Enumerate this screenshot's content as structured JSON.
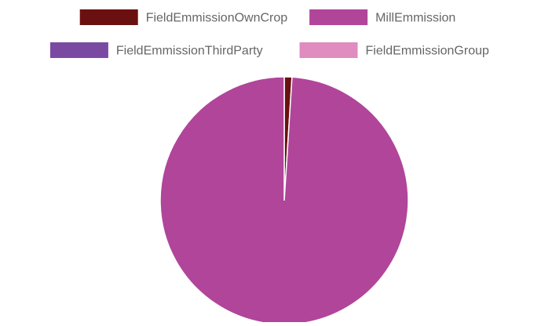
{
  "chart_data": {
    "type": "pie",
    "title": "",
    "legend_position": "top",
    "categories": [
      "FieldEmmissionOwnCrop",
      "MillEmmission",
      "FieldEmmissionThirdParty",
      "FieldEmmissionGroup"
    ],
    "values": [
      1.0,
      99.0,
      0.0,
      0.0
    ],
    "unit": "%",
    "colors": [
      "#6b1010",
      "#b0459a",
      "#7a4aa3",
      "#e08cc0"
    ],
    "start_angle_deg": 0,
    "direction": "clockwise"
  }
}
